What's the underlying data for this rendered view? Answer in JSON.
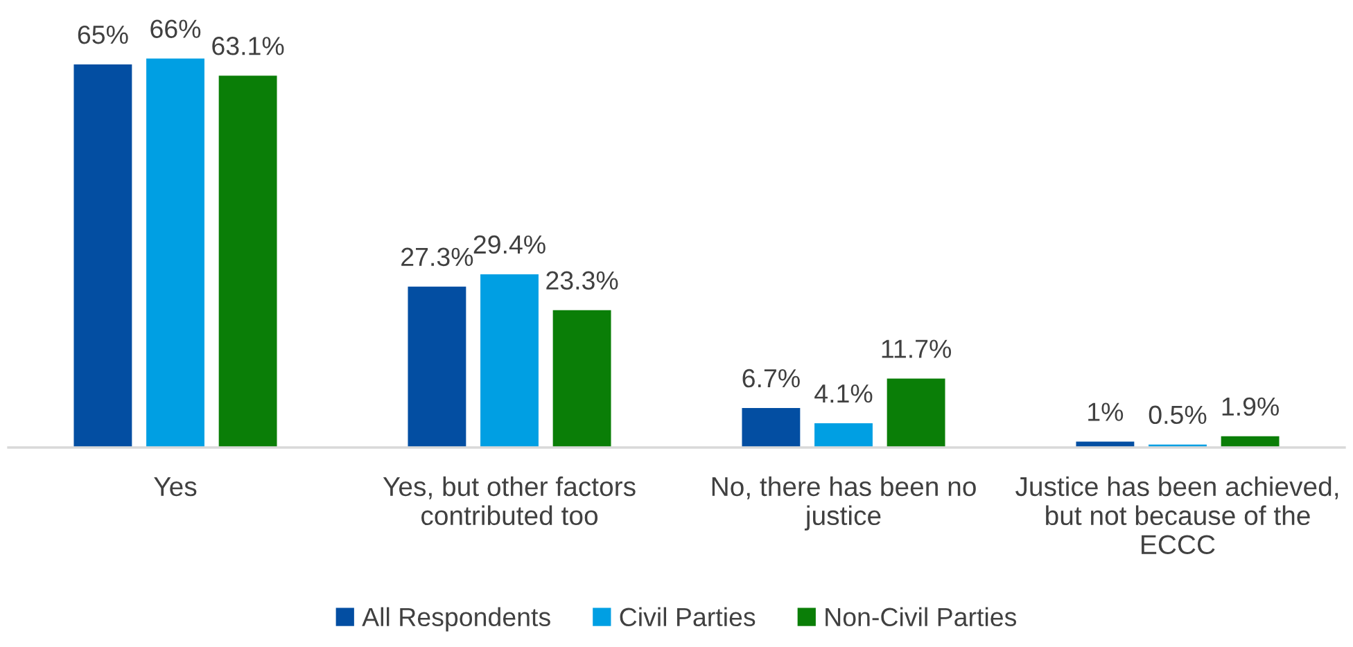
{
  "chart_data": {
    "type": "bar",
    "categories": [
      "Yes",
      "Yes, but other factors contributed too",
      "No, there has been no justice",
      "Justice has been achieved, but not because of the ECCC"
    ],
    "series": [
      {
        "name": "All Respondents",
        "color": "#034ea2",
        "values": [
          65,
          27.3,
          6.7,
          1
        ],
        "value_labels": [
          "65%",
          "27.3%",
          "6.7%",
          "1%"
        ]
      },
      {
        "name": "Civil Parties",
        "color": "#009fe3",
        "values": [
          66,
          29.4,
          4.1,
          0.5
        ],
        "value_labels": [
          "66%",
          "29.4%",
          "4.1%",
          "0.5%"
        ]
      },
      {
        "name": "Non-Civil Parties",
        "color": "#0a7e07",
        "values": [
          63.1,
          23.3,
          11.7,
          1.9
        ],
        "value_labels": [
          "63.1%",
          "23.3%",
          "11.7%",
          "1.9%"
        ]
      }
    ],
    "legend": "bottom",
    "tick_labels": "x"
  }
}
